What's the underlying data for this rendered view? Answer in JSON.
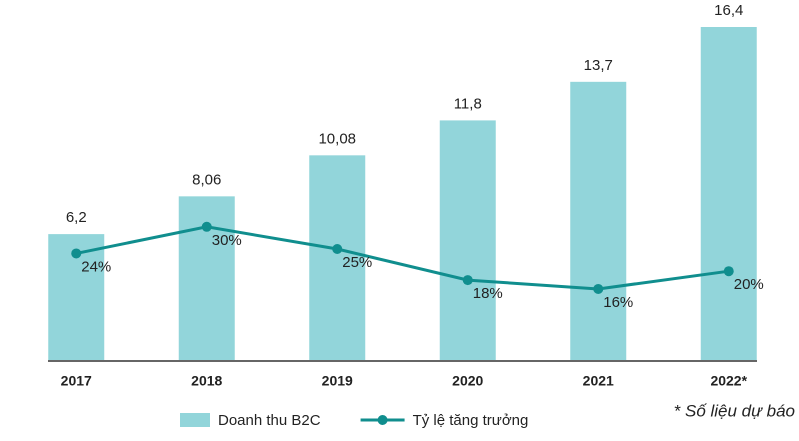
{
  "chart_data": {
    "type": "bar",
    "categories": [
      "2017",
      "2018",
      "2019",
      "2020",
      "2021",
      "2022*"
    ],
    "series": [
      {
        "name": "Doanh thu B2C",
        "type": "bar",
        "color": "#92d5da",
        "values": [
          6.2,
          8.06,
          10.08,
          11.8,
          13.7,
          16.4
        ],
        "value_labels": [
          "6,2",
          "8,06",
          "10,08",
          "11,8",
          "13,7",
          "16,4"
        ]
      },
      {
        "name": "Tỷ lệ tăng trưởng",
        "type": "line",
        "axis": "y2",
        "color": "#108e8e",
        "values": [
          24,
          30,
          25,
          18,
          16,
          20
        ],
        "value_labels": [
          "24%",
          "30%",
          "25%",
          "18%",
          "16%",
          "20%"
        ]
      }
    ],
    "ylim": [
      0,
      16.4
    ],
    "y2lim": [
      0,
      75
    ],
    "note": "* Số liệu dự báo"
  }
}
